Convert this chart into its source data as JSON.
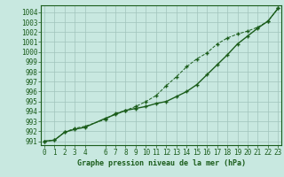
{
  "background_color": "#c8e8e0",
  "grid_color": "#a0c4bc",
  "line_color": "#1a5c1a",
  "marker_color": "#1a5c1a",
  "title": "Graphe pression niveau de la mer (hPa)",
  "tick_color": "#1a5c1a",
  "ylim": [
    990.6,
    1004.7
  ],
  "xlim": [
    -0.3,
    23.3
  ],
  "yticks": [
    991,
    992,
    993,
    994,
    995,
    996,
    997,
    998,
    999,
    1000,
    1001,
    1002,
    1003,
    1004
  ],
  "xticks": [
    0,
    1,
    2,
    3,
    4,
    6,
    7,
    8,
    9,
    10,
    11,
    12,
    13,
    14,
    15,
    16,
    17,
    18,
    19,
    20,
    21,
    22,
    23
  ],
  "line1_x": [
    0,
    1,
    2,
    3,
    4,
    6,
    7,
    8,
    9,
    10,
    11,
    12,
    13,
    14,
    15,
    16,
    17,
    18,
    19,
    20,
    21,
    22,
    23
  ],
  "line1_y": [
    991.0,
    991.1,
    991.9,
    992.2,
    992.4,
    993.3,
    993.7,
    994.1,
    994.3,
    994.5,
    994.8,
    995.0,
    995.5,
    996.0,
    996.7,
    997.7,
    998.7,
    999.7,
    1000.8,
    1001.6,
    1002.4,
    1003.1,
    1004.4
  ],
  "line2_x": [
    0,
    1,
    2,
    3,
    4,
    6,
    7,
    8,
    9,
    10,
    11,
    12,
    13,
    14,
    15,
    16,
    17,
    18,
    19,
    20,
    21,
    22,
    23
  ],
  "line2_y": [
    991.0,
    991.1,
    991.9,
    992.3,
    992.5,
    993.2,
    993.8,
    994.1,
    994.5,
    995.0,
    995.6,
    996.6,
    997.5,
    998.5,
    999.3,
    999.9,
    1000.8,
    1001.4,
    1001.8,
    1002.1,
    1002.5,
    1003.1,
    1004.4
  ]
}
